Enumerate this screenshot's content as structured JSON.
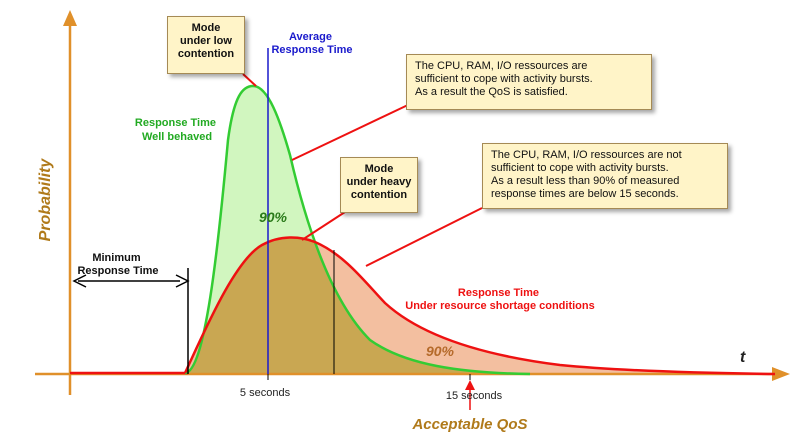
{
  "axes": {
    "y_label": "Probability",
    "x_label": "t"
  },
  "labels": {
    "average": "Average\nResponse Time",
    "well_behaved": "Response Time\nWell behaved",
    "shortage": "Response Time\nUnder resource shortage conditions",
    "minimum": "Minimum\nResponse Time",
    "pct_green": "90%",
    "pct_red": "90%",
    "five_seconds": "5 seconds",
    "fifteen_seconds": "15 seconds",
    "acceptable_qos": "Acceptable QoS"
  },
  "boxes": {
    "mode_low": "Mode\nunder low\ncontention",
    "mode_heavy": "Mode\nunder heavy\ncontention",
    "note_ok": "The CPU, RAM, I/O ressources are\nsufficient to cope with activity bursts.\nAs a result the QoS is satisfied.",
    "note_bad": "The CPU, RAM, I/O ressources are not\nsufficient to cope with activity bursts.\nAs a result less than 90% of measured\nresponse times are below 15 seconds."
  },
  "colors": {
    "axis": "#e0902a",
    "axis_label": "#b07a1a",
    "green": "#33cc33",
    "green_fill": "#ccf5b8",
    "red": "#ee1111",
    "red_fill": "#f2b896",
    "overlap": "#c9a752",
    "blue": "#1a1acc",
    "box_fill": "#fff4c8"
  }
}
